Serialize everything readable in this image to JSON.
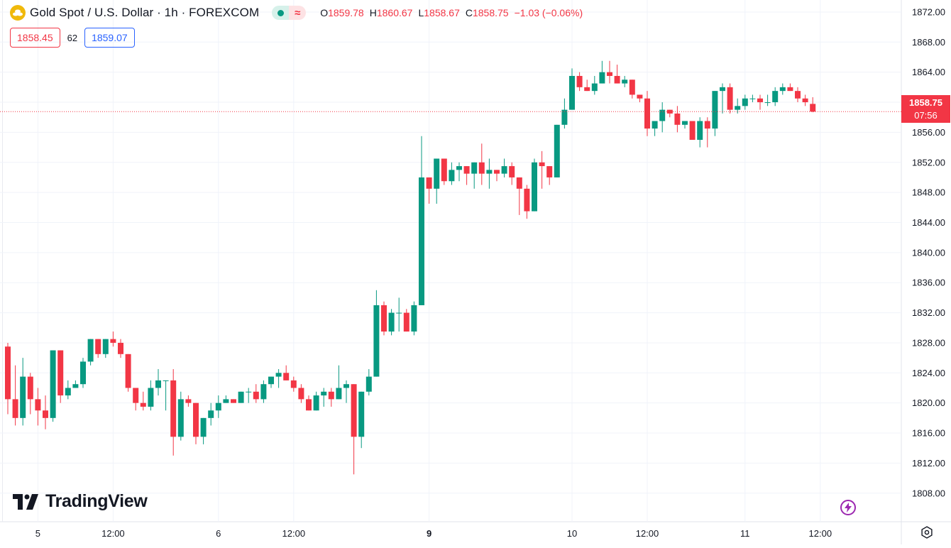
{
  "header": {
    "title": "Gold Spot / U.S. Dollar · 1h · FOREXCOM",
    "status_delay_glyph": "≈",
    "ohlc": [
      {
        "k": "O",
        "v": "1859.78"
      },
      {
        "k": "H",
        "v": "1860.67"
      },
      {
        "k": "L",
        "v": "1858.67"
      },
      {
        "k": "C",
        "v": "1858.75"
      },
      {
        "k": "",
        "v": "−1.03 (−0.06%)"
      }
    ]
  },
  "quote": {
    "bid": "1858.45",
    "spread": "62",
    "ask": "1859.07"
  },
  "last_price": {
    "price": "1858.75",
    "countdown": "07:56",
    "color": "#f23645"
  },
  "branding": {
    "logo_text": "TradingView"
  },
  "colors": {
    "up": "#089981",
    "down": "#f23645",
    "grid": "#f0f3fa",
    "axis_text": "#131722"
  },
  "icons": {
    "symbol": "gold-coins-icon",
    "bolt": "lightning-bolt-icon",
    "settings": "chart-settings-icon"
  },
  "chart_data": {
    "type": "candlestick",
    "title": "Gold Spot / U.S. Dollar · 1h · FOREXCOM",
    "interval": "1h",
    "y_axis": {
      "ticks": [
        1808,
        1812,
        1816,
        1820,
        1824,
        1828,
        1832,
        1836,
        1840,
        1844,
        1848,
        1852,
        1856,
        1860,
        1864,
        1868,
        1872
      ],
      "range": [
        1804.2,
        1873.6
      ],
      "position": "right"
    },
    "x_axis": {
      "ticks": [
        {
          "label": "5",
          "bar": 4,
          "bold": false
        },
        {
          "label": "12:00",
          "bar": 14,
          "bold": false
        },
        {
          "label": "6",
          "bar": 28,
          "bold": false
        },
        {
          "label": "12:00",
          "bar": 38,
          "bold": false
        },
        {
          "label": "9",
          "bar": 56,
          "bold": true
        },
        {
          "label": "10",
          "bar": 75,
          "bold": false
        },
        {
          "label": "12:00",
          "bar": 85,
          "bold": false
        },
        {
          "label": "11",
          "bar": 98,
          "bold": false
        },
        {
          "label": "12:00",
          "bar": 108,
          "bold": false
        }
      ]
    },
    "grid": true,
    "last_price_line": 1858.75,
    "bars": [
      [
        1827.5,
        1828.0,
        1818.5,
        1820.5
      ],
      [
        1820.5,
        1825.0,
        1817.0,
        1818.0
      ],
      [
        1818.0,
        1826.0,
        1817.0,
        1823.5
      ],
      [
        1823.5,
        1824.0,
        1818.5,
        1820.5
      ],
      [
        1820.5,
        1822.0,
        1817.0,
        1819.0
      ],
      [
        1819.0,
        1821.0,
        1816.5,
        1818.0
      ],
      [
        1818.0,
        1826.0,
        1817.5,
        1827.0
      ],
      [
        1827.0,
        1824.0,
        1820.0,
        1821.0
      ],
      [
        1821.0,
        1823.0,
        1820.5,
        1822.0
      ],
      [
        1822.0,
        1823.0,
        1822.0,
        1822.5
      ],
      [
        1822.5,
        1826.0,
        1822.0,
        1825.5
      ],
      [
        1825.5,
        1828.5,
        1825.0,
        1828.5
      ],
      [
        1828.5,
        1828.5,
        1826.0,
        1826.5
      ],
      [
        1826.5,
        1828.5,
        1826.0,
        1828.5
      ],
      [
        1828.5,
        1829.5,
        1827.5,
        1828.0
      ],
      [
        1828.0,
        1828.5,
        1826.0,
        1826.5
      ],
      [
        1826.5,
        1826.0,
        1821.5,
        1822.0
      ],
      [
        1822.0,
        1822.0,
        1819.0,
        1820.0
      ],
      [
        1820.0,
        1821.5,
        1819.0,
        1819.5
      ],
      [
        1819.5,
        1823.0,
        1819.0,
        1822.0
      ],
      [
        1822.0,
        1824.5,
        1821.0,
        1823.0
      ],
      [
        1823.0,
        1823.0,
        1819.0,
        1823.0
      ],
      [
        1823.0,
        1824.5,
        1813.0,
        1815.5
      ],
      [
        1815.5,
        1821.5,
        1815.0,
        1820.5
      ],
      [
        1820.5,
        1821.0,
        1819.5,
        1820.0
      ],
      [
        1820.0,
        1820.0,
        1814.5,
        1815.5
      ],
      [
        1815.5,
        1817.5,
        1814.5,
        1818.0
      ],
      [
        1818.0,
        1820.0,
        1817.0,
        1819.0
      ],
      [
        1819.0,
        1821.0,
        1818.0,
        1820.0
      ],
      [
        1820.0,
        1821.0,
        1820.0,
        1820.5
      ],
      [
        1820.5,
        1820.5,
        1820.0,
        1820.0
      ],
      [
        1820.0,
        1821.5,
        1820.0,
        1821.5
      ],
      [
        1821.5,
        1822.0,
        1820.0,
        1821.5
      ],
      [
        1821.5,
        1822.5,
        1820.0,
        1820.5
      ],
      [
        1820.5,
        1823.0,
        1820.0,
        1822.5
      ],
      [
        1822.5,
        1823.0,
        1822.0,
        1823.5
      ],
      [
        1823.5,
        1824.5,
        1822.0,
        1824.0
      ],
      [
        1824.0,
        1825.0,
        1823.0,
        1823.0
      ],
      [
        1823.0,
        1823.5,
        1821.5,
        1822.0
      ],
      [
        1822.0,
        1822.5,
        1820.0,
        1820.5
      ],
      [
        1820.5,
        1821.0,
        1819.0,
        1819.0
      ],
      [
        1819.0,
        1821.5,
        1819.0,
        1821.0
      ],
      [
        1821.0,
        1822.0,
        1819.5,
        1821.5
      ],
      [
        1821.5,
        1822.0,
        1819.5,
        1820.5
      ],
      [
        1820.5,
        1825.0,
        1820.5,
        1822.0
      ],
      [
        1822.0,
        1823.0,
        1820.0,
        1822.5
      ],
      [
        1822.5,
        1821.5,
        1810.5,
        1815.5
      ],
      [
        1815.5,
        1821.5,
        1814.0,
        1821.5
      ],
      [
        1821.5,
        1824.5,
        1821.0,
        1823.5
      ],
      [
        1823.5,
        1835.0,
        1823.5,
        1833.0
      ],
      [
        1833.0,
        1833.5,
        1829.0,
        1829.5
      ],
      [
        1829.5,
        1832.5,
        1829.0,
        1832.0
      ],
      [
        1832.0,
        1834.0,
        1829.5,
        1832.0
      ],
      [
        1832.0,
        1832.5,
        1829.5,
        1829.5
      ],
      [
        1829.5,
        1833.5,
        1829.0,
        1833.0
      ],
      [
        1833.0,
        1855.5,
        1833.0,
        1850.0
      ],
      [
        1850.0,
        1850.0,
        1846.5,
        1848.5
      ],
      [
        1848.5,
        1852.5,
        1846.5,
        1852.5
      ],
      [
        1852.5,
        1852.5,
        1849.0,
        1849.5
      ],
      [
        1849.5,
        1852.0,
        1849.0,
        1851.0
      ],
      [
        1851.0,
        1852.0,
        1849.5,
        1851.5
      ],
      [
        1851.5,
        1851.5,
        1849.0,
        1850.5
      ],
      [
        1850.5,
        1852.0,
        1848.5,
        1852.0
      ],
      [
        1852.0,
        1854.5,
        1849.0,
        1850.5
      ],
      [
        1850.5,
        1852.5,
        1848.5,
        1851.0
      ],
      [
        1851.0,
        1851.0,
        1849.5,
        1850.5
      ],
      [
        1850.5,
        1852.5,
        1850.0,
        1851.5
      ],
      [
        1851.5,
        1852.0,
        1849.0,
        1850.0
      ],
      [
        1850.0,
        1849.0,
        1845.0,
        1848.5
      ],
      [
        1848.5,
        1849.0,
        1844.5,
        1845.5
      ],
      [
        1845.5,
        1852.5,
        1845.5,
        1852.0
      ],
      [
        1852.0,
        1853.5,
        1848.5,
        1851.5
      ],
      [
        1851.5,
        1851.5,
        1849.0,
        1850.0
      ],
      [
        1850.0,
        1854.5,
        1850.0,
        1857.0
      ],
      [
        1857.0,
        1860.5,
        1856.5,
        1859.0
      ],
      [
        1859.0,
        1864.5,
        1859.0,
        1863.5
      ],
      [
        1863.5,
        1864.0,
        1861.5,
        1862.0
      ],
      [
        1862.0,
        1863.0,
        1861.5,
        1861.5
      ],
      [
        1861.5,
        1863.5,
        1861.0,
        1862.5
      ],
      [
        1862.5,
        1865.5,
        1862.5,
        1864.0
      ],
      [
        1864.0,
        1865.5,
        1862.5,
        1863.5
      ],
      [
        1863.5,
        1865.0,
        1862.5,
        1862.5
      ],
      [
        1862.5,
        1863.5,
        1862.0,
        1863.0
      ],
      [
        1863.0,
        1862.5,
        1860.5,
        1861.0
      ],
      [
        1861.0,
        1861.0,
        1860.0,
        1860.5
      ],
      [
        1860.5,
        1861.5,
        1855.5,
        1856.5
      ],
      [
        1856.5,
        1857.5,
        1855.5,
        1857.5
      ],
      [
        1857.5,
        1860.0,
        1856.0,
        1859.0
      ],
      [
        1859.0,
        1859.0,
        1858.0,
        1858.5
      ],
      [
        1858.5,
        1859.5,
        1856.0,
        1857.0
      ],
      [
        1857.0,
        1857.5,
        1856.5,
        1857.5
      ],
      [
        1857.5,
        1857.5,
        1855.0,
        1855.0
      ],
      [
        1855.0,
        1858.0,
        1854.0,
        1857.5
      ],
      [
        1857.5,
        1858.0,
        1854.0,
        1856.5
      ],
      [
        1856.5,
        1860.0,
        1855.5,
        1861.5
      ],
      [
        1861.5,
        1862.5,
        1858.5,
        1862.0
      ],
      [
        1862.0,
        1862.5,
        1858.5,
        1859.0
      ],
      [
        1859.0,
        1860.5,
        1858.5,
        1859.5
      ],
      [
        1859.5,
        1861.0,
        1859.0,
        1860.5
      ],
      [
        1860.5,
        1861.0,
        1860.0,
        1860.5
      ],
      [
        1860.5,
        1861.0,
        1859.0,
        1860.0
      ],
      [
        1860.0,
        1861.0,
        1859.5,
        1860.0
      ],
      [
        1860.0,
        1862.0,
        1859.5,
        1861.5
      ],
      [
        1861.5,
        1862.5,
        1861.0,
        1862.0
      ],
      [
        1862.0,
        1862.5,
        1861.5,
        1861.5
      ],
      [
        1861.5,
        1862.0,
        1860.0,
        1860.5
      ],
      [
        1860.5,
        1861.0,
        1859.5,
        1860.0
      ],
      [
        1859.78,
        1860.67,
        1858.67,
        1858.75
      ]
    ]
  }
}
